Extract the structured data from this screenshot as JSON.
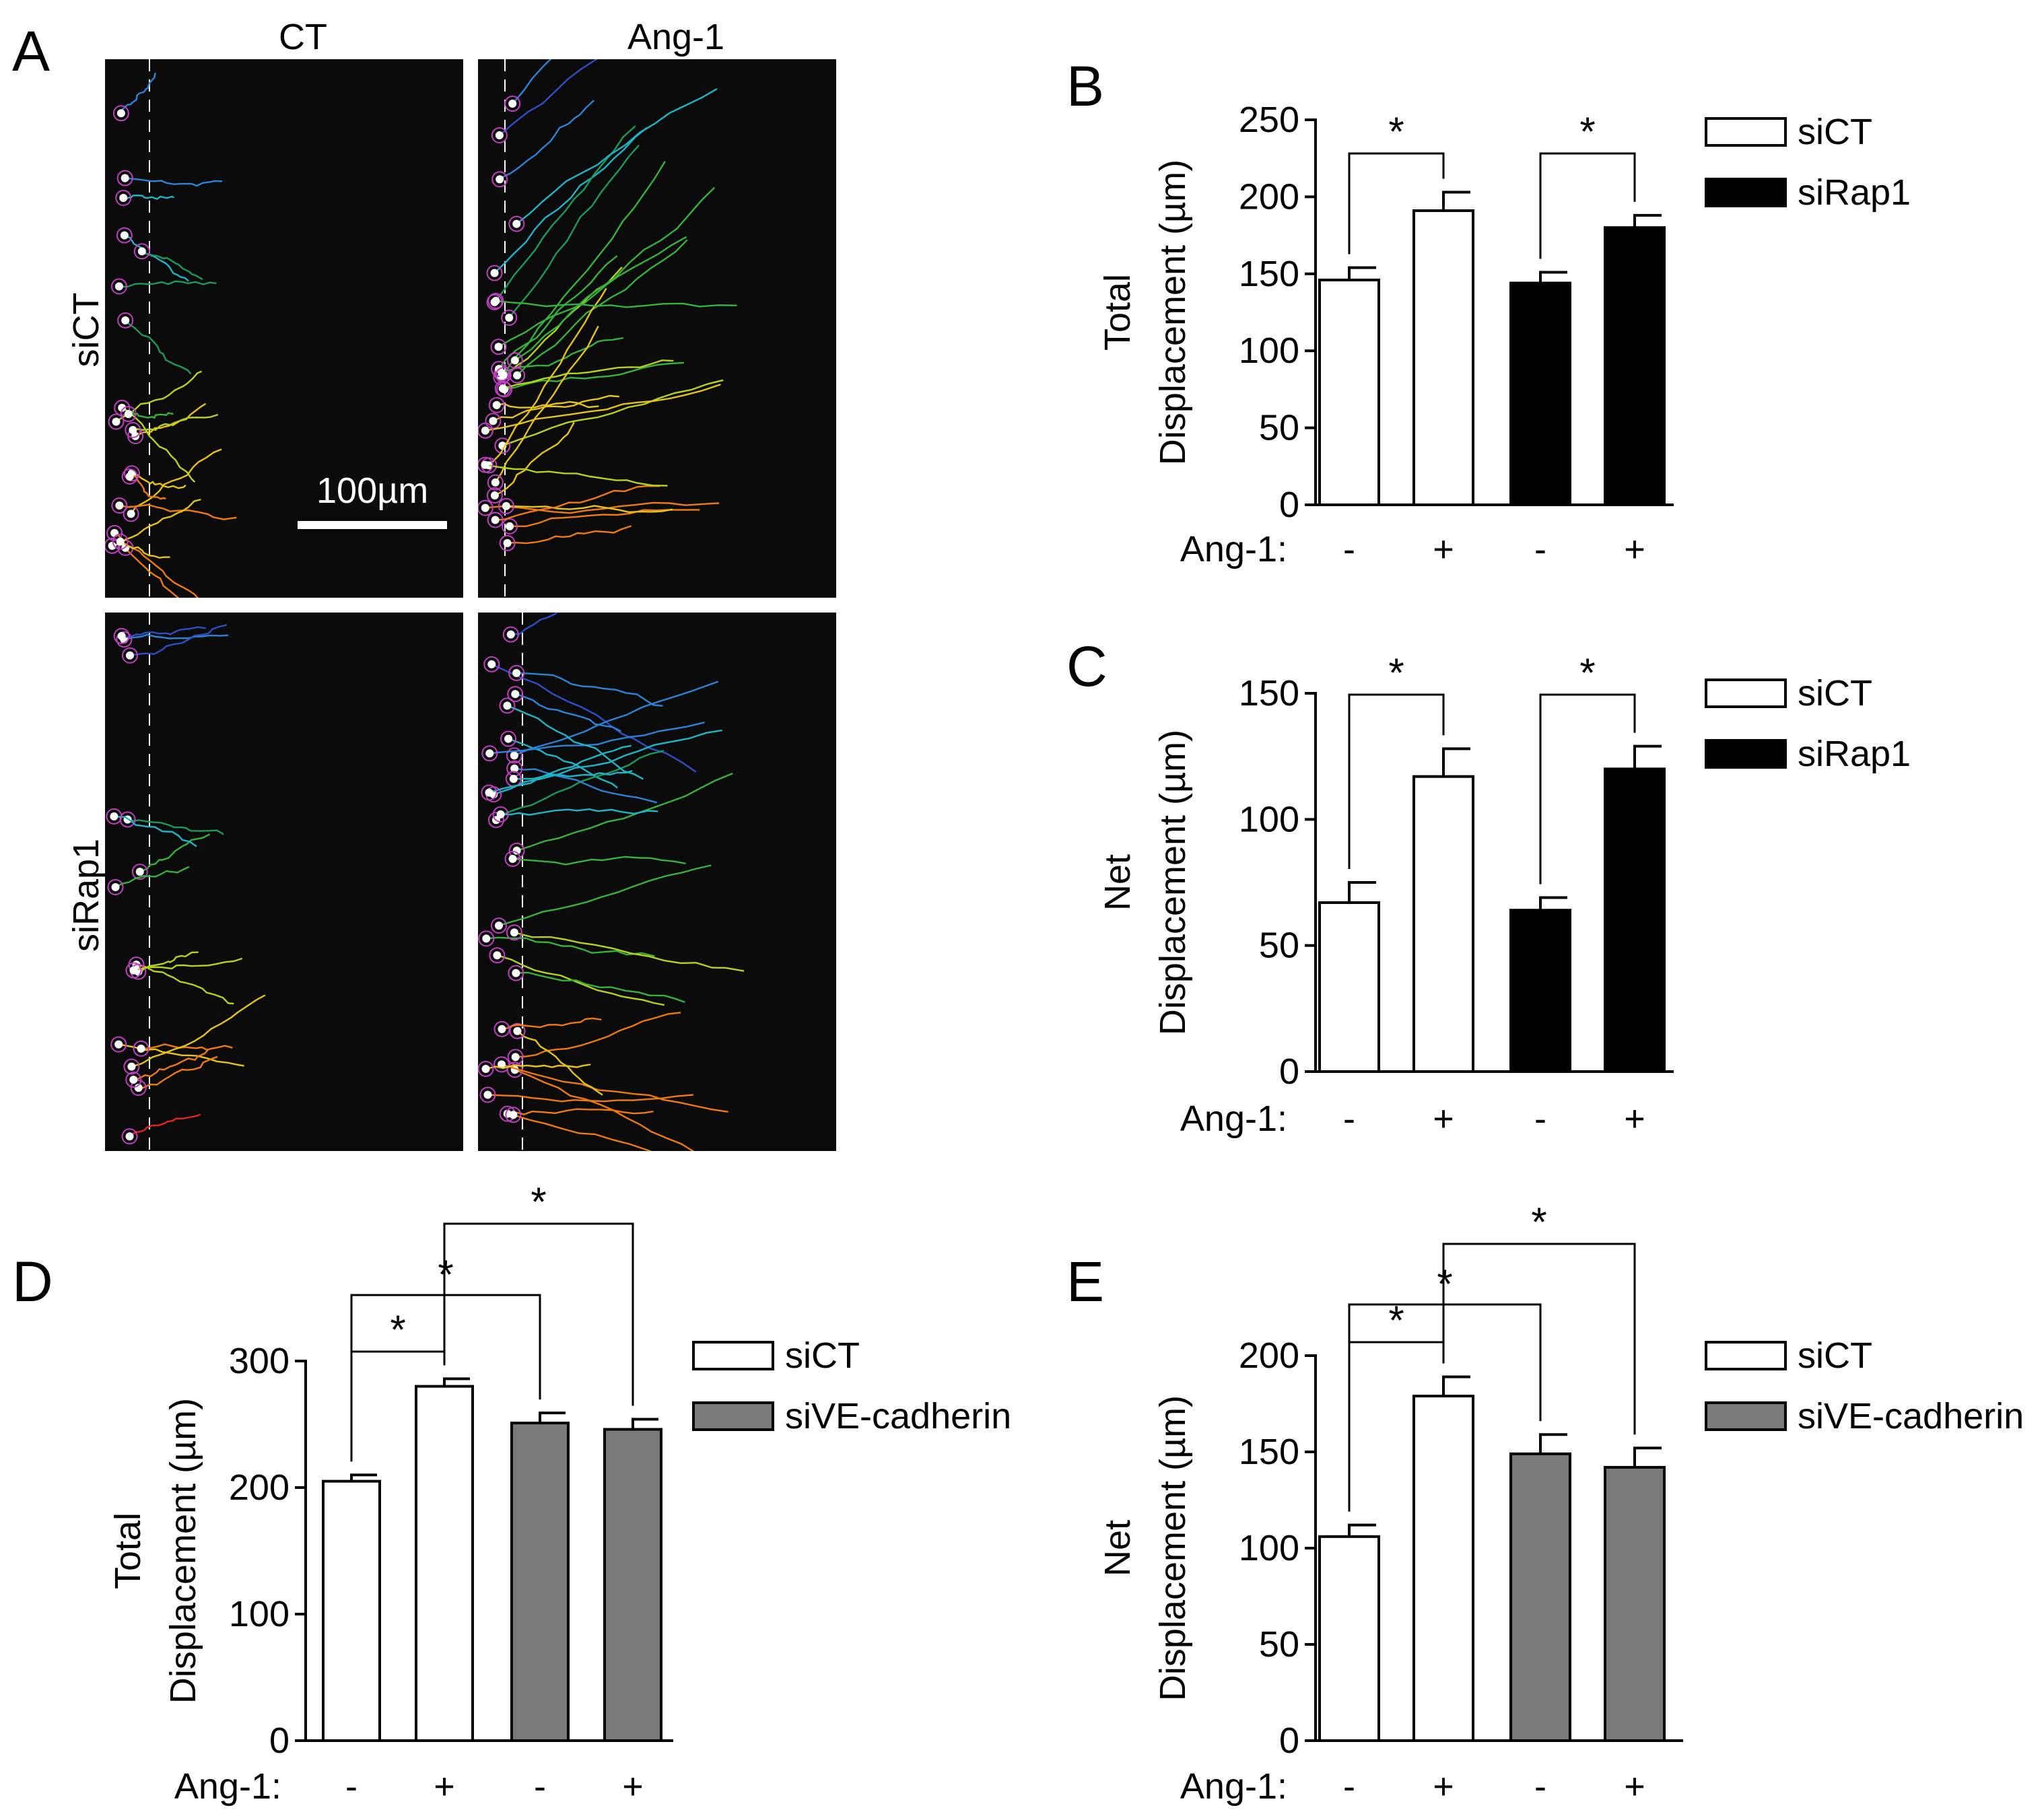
{
  "panel_a": {
    "letter": "A",
    "col_titles": [
      "CT",
      "Ang-1"
    ],
    "row_titles": [
      "siCT",
      "siRap1"
    ],
    "scale_bar_label": "100µm"
  },
  "chart_data": [
    {
      "panel": "B",
      "type": "bar",
      "ylabel_line1": "Total",
      "ylabel_line2": "Displacement (µm)",
      "ylim": [
        0,
        250
      ],
      "yticks": [
        0,
        50,
        100,
        150,
        200,
        250
      ],
      "treatment_label": "Ang-1:",
      "treatments": [
        "-",
        "+",
        "-",
        "+"
      ],
      "values": [
        146,
        191,
        144,
        180
      ],
      "errors": [
        8,
        12,
        7,
        8
      ],
      "bar_series": [
        0,
        0,
        1,
        1
      ],
      "series": [
        {
          "name": "siCT",
          "color": "#ffffff"
        },
        {
          "name": "siRap1",
          "color": "#000000"
        }
      ],
      "significance": [
        {
          "from": 0,
          "to": 1,
          "label": "*"
        },
        {
          "from": 2,
          "to": 3,
          "label": "*"
        }
      ]
    },
    {
      "panel": "C",
      "type": "bar",
      "ylabel_line1": "Net",
      "ylabel_line2": "Displacement (µm)",
      "ylim": [
        0,
        150
      ],
      "yticks": [
        0,
        50,
        100,
        150
      ],
      "treatment_label": "Ang-1:",
      "treatments": [
        "-",
        "+",
        "-",
        "+"
      ],
      "values": [
        67,
        117,
        64,
        120
      ],
      "errors": [
        8,
        11,
        5,
        9
      ],
      "bar_series": [
        0,
        0,
        1,
        1
      ],
      "series": [
        {
          "name": "siCT",
          "color": "#ffffff"
        },
        {
          "name": "siRap1",
          "color": "#000000"
        }
      ],
      "significance": [
        {
          "from": 0,
          "to": 1,
          "label": "*"
        },
        {
          "from": 2,
          "to": 3,
          "label": "*"
        }
      ]
    },
    {
      "panel": "D",
      "type": "bar",
      "ylabel_line1": "Total",
      "ylabel_line2": "Displacement (µm)",
      "ylim": [
        0,
        300
      ],
      "yticks": [
        0,
        100,
        200,
        300
      ],
      "treatment_label": "Ang-1:",
      "treatments": [
        "-",
        "+",
        "-",
        "+"
      ],
      "values": [
        205,
        280,
        251,
        246
      ],
      "errors": [
        5,
        6,
        8,
        8
      ],
      "bar_series": [
        0,
        0,
        1,
        1
      ],
      "series": [
        {
          "name": "siCT",
          "color": "#ffffff"
        },
        {
          "name": "siVE-cadherin",
          "color": "#7a7a7a"
        }
      ],
      "significance": [
        {
          "from": 0,
          "to": 1,
          "label": "*"
        },
        {
          "from": 0,
          "to": 2,
          "label": "*"
        },
        {
          "from": 1,
          "to": 3,
          "label": "*"
        }
      ]
    },
    {
      "panel": "E",
      "type": "bar",
      "ylabel_line1": "Net",
      "ylabel_line2": "Displacement (µm)",
      "ylim": [
        0,
        200
      ],
      "yticks": [
        0,
        50,
        100,
        150,
        200
      ],
      "treatment_label": "Ang-1:",
      "treatments": [
        "-",
        "+",
        "-",
        "+"
      ],
      "values": [
        106,
        179,
        149,
        142
      ],
      "errors": [
        6,
        10,
        10,
        10
      ],
      "bar_series": [
        0,
        0,
        1,
        1
      ],
      "series": [
        {
          "name": "siCT",
          "color": "#ffffff"
        },
        {
          "name": "siVE-cadherin",
          "color": "#7a7a7a"
        }
      ],
      "significance": [
        {
          "from": 0,
          "to": 1,
          "label": "*"
        },
        {
          "from": 0,
          "to": 2,
          "label": "*"
        },
        {
          "from": 1,
          "to": 3,
          "label": "*"
        }
      ]
    }
  ]
}
